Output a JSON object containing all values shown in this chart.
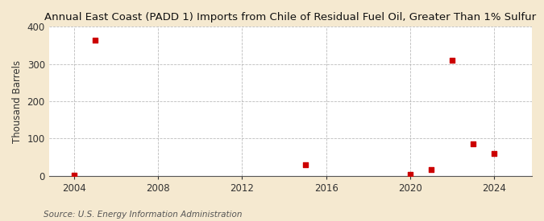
{
  "title": "Annual East Coast (PADD 1) Imports from Chile of Residual Fuel Oil, Greater Than 1% Sulfur",
  "ylabel": "Thousand Barrels",
  "source": "Source: U.S. Energy Information Administration",
  "background_color": "#f5e9d0",
  "plot_background_color": "#ffffff",
  "data_points": [
    {
      "year": 2004,
      "value": 2
    },
    {
      "year": 2005,
      "value": 365
    },
    {
      "year": 2015,
      "value": 30
    },
    {
      "year": 2020,
      "value": 3
    },
    {
      "year": 2021,
      "value": 17
    },
    {
      "year": 2022,
      "value": 310
    },
    {
      "year": 2023,
      "value": 85
    },
    {
      "year": 2024,
      "value": 60
    }
  ],
  "marker_color": "#cc0000",
  "marker_size": 5,
  "xlim": [
    2002.8,
    2025.8
  ],
  "ylim": [
    0,
    400
  ],
  "xticks": [
    2004,
    2008,
    2012,
    2016,
    2020,
    2024
  ],
  "yticks": [
    0,
    100,
    200,
    300,
    400
  ],
  "grid_color": "#aaaaaa",
  "grid_style": "--",
  "grid_alpha": 0.8,
  "title_fontsize": 9.5,
  "ylabel_fontsize": 8.5,
  "tick_fontsize": 8.5,
  "source_fontsize": 7.5
}
